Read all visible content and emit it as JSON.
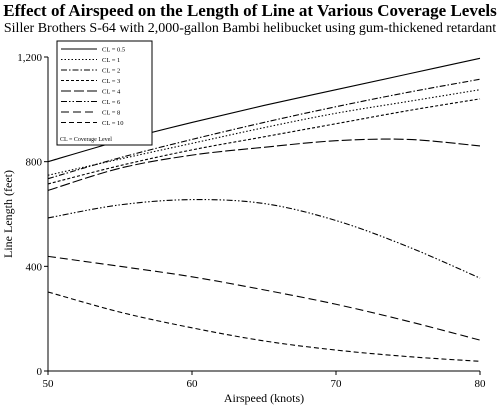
{
  "chart_data": {
    "type": "line",
    "title": "Effect of Airspeed on the Length of Line at Various Coverage Levels",
    "subtitle": "Siller Brothers S-64 with 2,000-gallon Bambi helibucket using gum-thickened retardant",
    "xlabel": "Airspeed (knots)",
    "ylabel": "Line Length (feet)",
    "xlim": [
      50,
      80
    ],
    "ylim": [
      0,
      1200
    ],
    "x_ticks": [
      50,
      60,
      70,
      80
    ],
    "y_ticks": [
      0,
      400,
      800,
      1200
    ],
    "y_tick_labels": [
      "0",
      "400",
      "800",
      "1,200"
    ],
    "grid": false,
    "legend_position": "top-left",
    "legend_note": "CL = Coverage Level",
    "x": [
      50,
      55,
      60,
      65,
      70,
      75,
      80
    ],
    "series": [
      {
        "name": "CL = 0.5",
        "dash": "solid",
        "values": [
          800,
          880,
          950,
          1015,
          1075,
          1135,
          1195
        ]
      },
      {
        "name": "CL = 1",
        "dash": "dotted",
        "values": [
          748,
          810,
          870,
          930,
          985,
          1030,
          1075
        ]
      },
      {
        "name": "CL = 2",
        "dash": "dashdot",
        "values": [
          735,
          815,
          885,
          950,
          1010,
          1065,
          1115
        ]
      },
      {
        "name": "CL = 3",
        "dash": "shortdash",
        "values": [
          715,
          785,
          845,
          895,
          945,
          995,
          1040
        ]
      },
      {
        "name": "CL = 4",
        "dash": "longdash",
        "values": [
          690,
          775,
          825,
          855,
          880,
          885,
          860
        ]
      },
      {
        "name": "CL = 6",
        "dash": "dashdotdot",
        "values": [
          585,
          635,
          655,
          640,
          575,
          475,
          355
        ]
      },
      {
        "name": "CL = 8",
        "dash": "longdash2",
        "values": [
          438,
          400,
          360,
          310,
          255,
          190,
          118
        ]
      },
      {
        "name": "CL = 10",
        "dash": "dash",
        "values": [
          302,
          225,
          165,
          115,
          80,
          55,
          37
        ]
      }
    ]
  }
}
